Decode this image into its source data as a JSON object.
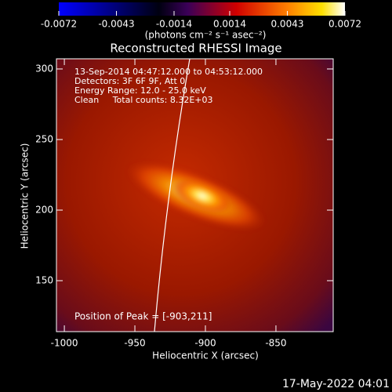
{
  "chart_data": {
    "type": "image",
    "title": "Reconstructed RHESSI Image",
    "colorbar": {
      "label": "(photons cm⁻² s⁻¹ asec⁻²)",
      "clim": [
        -0.0072,
        0.0072
      ],
      "ticks": [
        -0.0072,
        -0.0043,
        -0.0014,
        0.0014,
        0.0043,
        0.0072
      ]
    },
    "annotations": [
      "13-Sep-2014 04:47:12.000 to 04:53:12.000",
      "Detectors: 3F 6F 9F, Att 0",
      "Energy Range: 12.0 - 25.0 keV",
      "Clean     Total counts: 8.32E+03"
    ],
    "peak_annotation": "Position of Peak = [-903,211]",
    "x_label": "Heliocentric X (arcsec)",
    "y_label": "Heliocentric Y (arcsec)",
    "xlim": [
      -1005.6,
      -809.4
    ],
    "xticks": [
      -1000,
      -950,
      -900,
      -850
    ],
    "ylim": [
      113.9,
      307.2
    ],
    "yticks": [
      150,
      200,
      250,
      300
    ],
    "footer": "17-May-2022 04:01"
  }
}
